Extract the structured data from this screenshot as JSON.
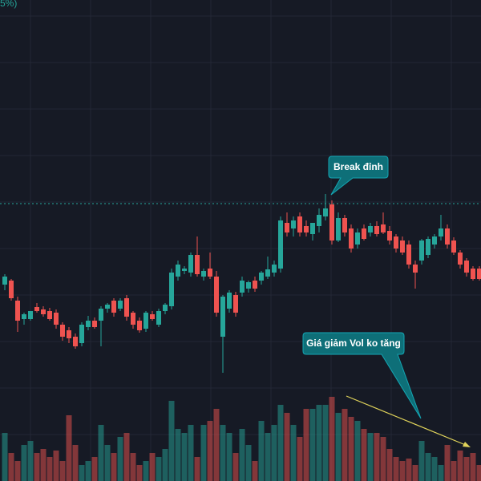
{
  "chart_data": {
    "type": "candlestick",
    "top_label": "5%)",
    "up_color": "#26a69a",
    "down_color": "#ef5350",
    "ylim": [
      0,
      600
    ],
    "vlim": [
      0,
      600
    ],
    "open": [
      245,
      250,
      225,
      202,
      202,
      217,
      214,
      212,
      210,
      195,
      188,
      180,
      172,
      192,
      200,
      200,
      215,
      225,
      215,
      228,
      210,
      200,
      190,
      208,
      195,
      212,
      218,
      255,
      262,
      260,
      282,
      255,
      265,
      255,
      180,
      215,
      232,
      235,
      240,
      250,
      250,
      255,
      260,
      265,
      322,
      315,
      330,
      318,
      308,
      318,
      330,
      345,
      300,
      328,
      315,
      295,
      315,
      310,
      318,
      320,
      312,
      305,
      300,
      295,
      270,
      275,
      282,
      295,
      305,
      315,
      300,
      285,
      275,
      265,
      265
    ],
    "high": [
      258,
      252,
      230,
      210,
      212,
      222,
      218,
      216,
      214,
      198,
      192,
      184,
      198,
      206,
      204,
      218,
      222,
      228,
      228,
      232,
      212,
      204,
      212,
      212,
      215,
      222,
      265,
      275,
      268,
      285,
      305,
      265,
      285,
      262,
      232,
      238,
      236,
      255,
      250,
      255,
      262,
      280,
      275,
      330,
      335,
      330,
      335,
      325,
      322,
      340,
      358,
      350,
      335,
      332,
      320,
      315,
      320,
      322,
      324,
      335,
      318,
      308,
      305,
      300,
      275,
      302,
      305,
      308,
      332,
      320,
      304,
      288,
      278,
      268,
      268
    ],
    "low": [
      238,
      225,
      186,
      195,
      200,
      210,
      205,
      200,
      190,
      175,
      172,
      165,
      168,
      188,
      190,
      168,
      210,
      205,
      212,
      200,
      190,
      185,
      186,
      200,
      192,
      208,
      214,
      250,
      258,
      255,
      255,
      250,
      252,
      205,
      135,
      210,
      205,
      230,
      235,
      236,
      245,
      252,
      255,
      260,
      305,
      305,
      305,
      305,
      300,
      310,
      325,
      295,
      298,
      305,
      285,
      290,
      300,
      305,
      305,
      308,
      295,
      285,
      282,
      265,
      240,
      270,
      278,
      290,
      300,
      290,
      282,
      265,
      255,
      250,
      250
    ],
    "close": [
      255,
      228,
      200,
      208,
      212,
      212,
      208,
      202,
      195,
      180,
      178,
      168,
      195,
      200,
      192,
      215,
      220,
      210,
      225,
      205,
      195,
      188,
      210,
      202,
      212,
      220,
      260,
      270,
      265,
      282,
      258,
      262,
      255,
      210,
      230,
      235,
      210,
      250,
      248,
      240,
      260,
      264,
      270,
      325,
      310,
      325,
      310,
      310,
      322,
      332,
      340,
      300,
      328,
      310,
      290,
      310,
      302,
      318,
      308,
      310,
      300,
      290,
      285,
      270,
      260,
      300,
      302,
      305,
      315,
      295,
      285,
      270,
      260,
      252,
      252
    ],
    "volume": [
      60,
      35,
      25,
      45,
      50,
      35,
      40,
      30,
      38,
      25,
      82,
      45,
      20,
      25,
      30,
      70,
      45,
      35,
      55,
      60,
      35,
      20,
      25,
      35,
      30,
      40,
      100,
      65,
      60,
      70,
      30,
      70,
      75,
      90,
      70,
      60,
      35,
      65,
      45,
      25,
      75,
      60,
      70,
      95,
      85,
      70,
      55,
      90,
      90,
      95,
      95,
      105,
      85,
      90,
      80,
      75,
      65,
      60,
      60,
      55,
      40,
      30,
      25,
      28,
      20,
      50,
      35,
      30,
      20,
      45,
      25,
      38,
      30,
      35,
      20
    ],
    "annotations": [
      {
        "text": "Break đỉnh"
      },
      {
        "text": "Giá giảm Vol ko tăng"
      }
    ]
  }
}
